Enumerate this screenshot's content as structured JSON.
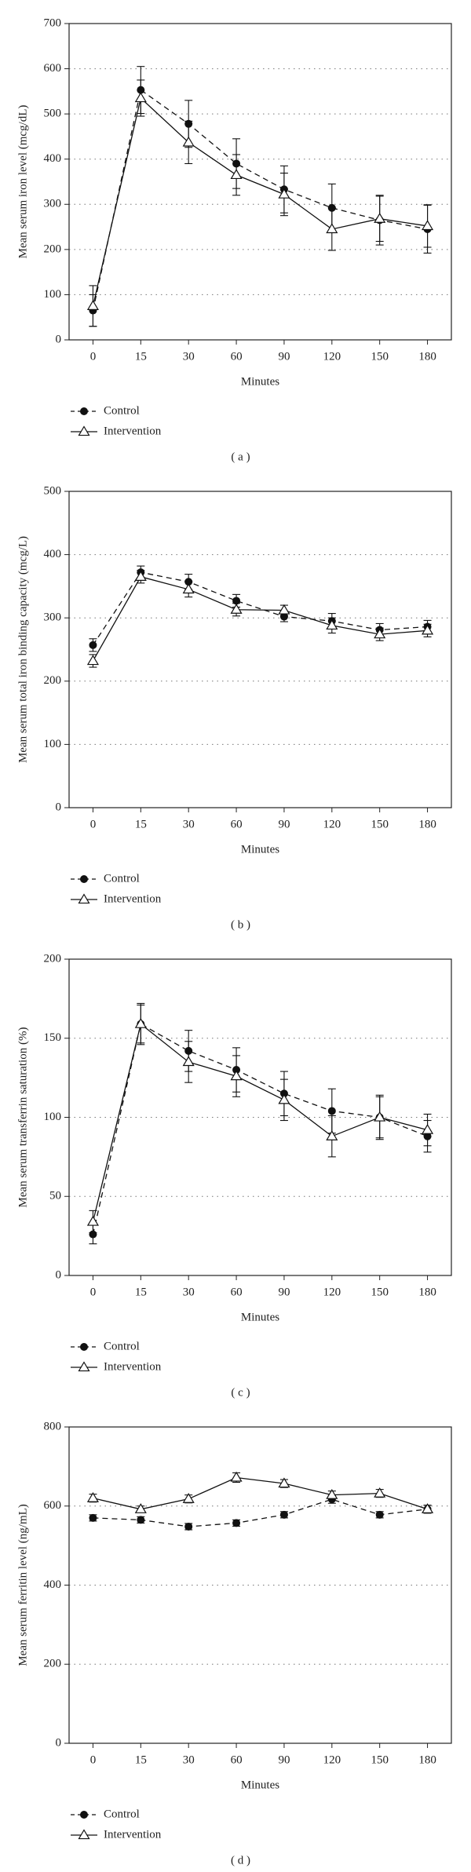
{
  "chart_data": [
    {
      "type": "line",
      "ylabel": "Mean serum iron level (mcg/dL)",
      "xlabel": "Minutes",
      "caption": "( a )",
      "categories": [
        "0",
        "15",
        "30",
        "60",
        "90",
        "120",
        "150",
        "180"
      ],
      "ylim": [
        0,
        700
      ],
      "yticks": [
        0,
        100,
        200,
        300,
        400,
        500,
        600,
        700
      ],
      "grid": true,
      "legend_position": "below",
      "series": [
        {
          "name": "Control",
          "color": "#111111",
          "line_style": "dashed",
          "marker": "circle",
          "values": [
            65,
            553,
            478,
            390,
            333,
            292,
            265,
            245
          ],
          "errors": [
            35,
            52,
            52,
            55,
            52,
            53,
            55,
            53
          ]
        },
        {
          "name": "Intervention",
          "color": "#111111",
          "line_style": "solid",
          "marker": "triangle",
          "values": [
            75,
            535,
            437,
            365,
            322,
            245,
            268,
            252
          ],
          "errors": [
            45,
            40,
            47,
            45,
            47,
            47,
            50,
            47
          ]
        }
      ]
    },
    {
      "type": "line",
      "ylabel": "Mean serum total iron binding capacity (mcg/L)",
      "xlabel": "Minutes",
      "caption": "( b )",
      "categories": [
        "0",
        "15",
        "30",
        "60",
        "90",
        "120",
        "150",
        "180"
      ],
      "ylim": [
        0,
        500
      ],
      "yticks": [
        0,
        100,
        200,
        300,
        400,
        500
      ],
      "grid": true,
      "legend_position": "below",
      "series": [
        {
          "name": "Control",
          "color": "#111111",
          "line_style": "dashed",
          "marker": "circle",
          "values": [
            257,
            372,
            357,
            327,
            302,
            295,
            281,
            286
          ],
          "errors": [
            10,
            10,
            12,
            10,
            8,
            12,
            10,
            10
          ]
        },
        {
          "name": "Intervention",
          "color": "#111111",
          "line_style": "solid",
          "marker": "triangle",
          "values": [
            232,
            365,
            345,
            313,
            312,
            288,
            274,
            280
          ],
          "errors": [
            10,
            10,
            12,
            10,
            8,
            12,
            10,
            10
          ]
        }
      ]
    },
    {
      "type": "line",
      "ylabel": "Mean serum transferrin saturation (%)",
      "xlabel": "Minutes",
      "caption": "( c )",
      "categories": [
        "0",
        "15",
        "30",
        "60",
        "90",
        "120",
        "150",
        "180"
      ],
      "ylim": [
        0,
        200
      ],
      "yticks": [
        0,
        50,
        100,
        150,
        200
      ],
      "grid": true,
      "legend_position": "below",
      "series": [
        {
          "name": "Control",
          "color": "#111111",
          "line_style": "dashed",
          "marker": "circle",
          "values": [
            26,
            159,
            142,
            130,
            115,
            104,
            100,
            88
          ],
          "errors": [
            6,
            13,
            13,
            14,
            14,
            14,
            14,
            10
          ]
        },
        {
          "name": "Intervention",
          "color": "#111111",
          "line_style": "solid",
          "marker": "triangle",
          "values": [
            34,
            159,
            135,
            126,
            111,
            88,
            100,
            92
          ],
          "errors": [
            7,
            12,
            13,
            13,
            13,
            13,
            13,
            10
          ]
        }
      ]
    },
    {
      "type": "line",
      "ylabel": "Mean serum ferritin level (ng/mL)",
      "xlabel": "Minutes",
      "caption": "( d )",
      "categories": [
        "0",
        "15",
        "30",
        "60",
        "90",
        "120",
        "150",
        "180"
      ],
      "ylim": [
        0,
        800
      ],
      "yticks": [
        0,
        200,
        400,
        600,
        800
      ],
      "grid": true,
      "legend_position": "below",
      "series": [
        {
          "name": "Control",
          "color": "#111111",
          "line_style": "dashed",
          "marker": "circle",
          "values": [
            570,
            565,
            548,
            557,
            578,
            617,
            578,
            592
          ],
          "errors": [
            8,
            8,
            8,
            8,
            8,
            10,
            8,
            10
          ]
        },
        {
          "name": "Intervention",
          "color": "#111111",
          "line_style": "solid",
          "marker": "triangle",
          "values": [
            620,
            592,
            618,
            672,
            657,
            628,
            632,
            592
          ],
          "errors": [
            10,
            8,
            10,
            12,
            10,
            10,
            10,
            10
          ]
        }
      ]
    }
  ]
}
